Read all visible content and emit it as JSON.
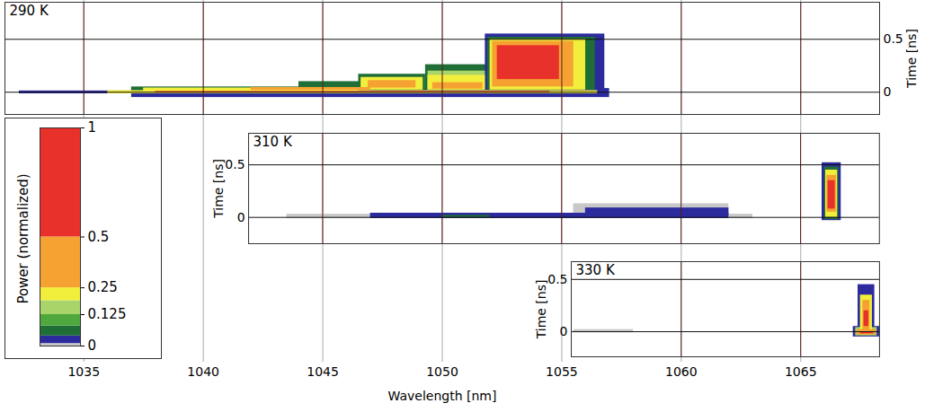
{
  "chart_data": {
    "type": "heatmap",
    "xlabel": "Wavelength [nm]",
    "xlim": [
      1031.7,
      1068.3
    ],
    "xticks": [
      1035,
      1040,
      1045,
      1050,
      1055,
      1060,
      1065
    ],
    "grid": true,
    "color_bar": {
      "label": "Power (normalized)",
      "range": [
        0,
        1
      ],
      "ticks": [
        0,
        0.125,
        0.25,
        0.5,
        1
      ],
      "bins": [
        0,
        0.01,
        0.04,
        0.08,
        0.125,
        0.19,
        0.25,
        0.5,
        1
      ],
      "colors": [
        "#c8c8c8",
        "#2b2b9e",
        "#1f6e35",
        "#4ea83c",
        "#a8d46a",
        "#f2ee3c",
        "#f6a232",
        "#e8312b"
      ]
    },
    "panels": [
      {
        "title": "290 K",
        "ylabel": "Time [ns]",
        "xlim": [
          1031.7,
          1068.3
        ],
        "ylim": [
          -0.21,
          0.85
        ],
        "yticks": [
          0,
          0.5
        ],
        "cells": [
          {
            "x1": 1032.3,
            "x2": 1037.5,
            "y1": -0.015,
            "y2": 0.012,
            "value": 0.02
          },
          {
            "x1": 1037,
            "x2": 1057,
            "y1": -0.05,
            "y2": 0.035,
            "value": 0.02
          },
          {
            "x1": 1037,
            "x2": 1045,
            "y1": 0,
            "y2": 0.05,
            "value": 0.06
          },
          {
            "x1": 1044,
            "x2": 1047,
            "y1": 0.02,
            "y2": 0.1,
            "value": 0.06
          },
          {
            "x1": 1046.5,
            "x2": 1049.3,
            "y1": 0.02,
            "y2": 0.17,
            "value": 0.06
          },
          {
            "x1": 1049.3,
            "x2": 1051.9,
            "y1": 0.02,
            "y2": 0.26,
            "value": 0.06
          },
          {
            "x1": 1051.8,
            "x2": 1056.8,
            "y1": 0.02,
            "y2": 0.55,
            "value": 0.02
          },
          {
            "x1": 1051.9,
            "x2": 1056.4,
            "y1": 0.02,
            "y2": 0.52,
            "value": 0.06
          },
          {
            "x1": 1037.5,
            "x2": 1046.5,
            "y1": 0,
            "y2": 0.04,
            "value": 0.2
          },
          {
            "x1": 1046.6,
            "x2": 1049.2,
            "y1": 0.02,
            "y2": 0.14,
            "value": 0.2
          },
          {
            "x1": 1049.4,
            "x2": 1051.8,
            "y1": 0.02,
            "y2": 0.2,
            "value": 0.15
          },
          {
            "x1": 1049.4,
            "x2": 1051.8,
            "y1": 0.02,
            "y2": 0.16,
            "value": 0.2
          },
          {
            "x1": 1052,
            "x2": 1056,
            "y1": 0.02,
            "y2": 0.5,
            "value": 0.2
          },
          {
            "x1": 1046.9,
            "x2": 1048.9,
            "y1": 0.04,
            "y2": 0.11,
            "value": 0.35
          },
          {
            "x1": 1049.6,
            "x2": 1051.7,
            "y1": 0.03,
            "y2": 0.09,
            "value": 0.35
          },
          {
            "x1": 1042,
            "x2": 1047,
            "y1": 0.015,
            "y2": 0.045,
            "value": 0.35
          },
          {
            "x1": 1052.1,
            "x2": 1055.5,
            "y1": 0.05,
            "y2": 0.48,
            "value": 0.35
          },
          {
            "x1": 1052.3,
            "x2": 1054.9,
            "y1": 0.12,
            "y2": 0.44,
            "value": 0.75
          },
          {
            "x1": 1036,
            "x2": 1056.5,
            "y1": -0.015,
            "y2": 0.015,
            "value": 0.2
          },
          {
            "x1": 1038,
            "x2": 1054.5,
            "y1": -0.007,
            "y2": 0.007,
            "value": 0.75
          }
        ]
      },
      {
        "title": "310 K",
        "ylabel": "Time [ns]",
        "xlim": [
          1041.9,
          1068.3
        ],
        "ylim": [
          -0.25,
          0.8
        ],
        "yticks": [
          0,
          0.5
        ],
        "cells": [
          {
            "x1": 1043.5,
            "x2": 1063,
            "y1": -0.01,
            "y2": 0.03,
            "value": 0.005
          },
          {
            "x1": 1055.5,
            "x2": 1062,
            "y1": 0,
            "y2": 0.13,
            "value": 0.005
          },
          {
            "x1": 1047,
            "x2": 1062,
            "y1": -0.01,
            "y2": 0.04,
            "value": 0.02
          },
          {
            "x1": 1056,
            "x2": 1062,
            "y1": 0.02,
            "y2": 0.09,
            "value": 0.02
          },
          {
            "x1": 1050,
            "x2": 1052,
            "y1": 0,
            "y2": 0.02,
            "value": 0.06
          },
          {
            "x1": 1065.9,
            "x2": 1066.7,
            "y1": -0.03,
            "y2": 0.52,
            "value": 0.02
          },
          {
            "x1": 1066,
            "x2": 1066.6,
            "y1": -0.02,
            "y2": 0.48,
            "value": 0.06
          },
          {
            "x1": 1066.05,
            "x2": 1066.55,
            "y1": 0,
            "y2": 0.45,
            "value": 0.2
          },
          {
            "x1": 1066.1,
            "x2": 1066.5,
            "y1": 0.05,
            "y2": 0.4,
            "value": 0.35
          },
          {
            "x1": 1066.15,
            "x2": 1066.45,
            "y1": 0.08,
            "y2": 0.35,
            "value": 0.75
          }
        ]
      },
      {
        "title": "330 K",
        "ylabel": "Time [ns]",
        "xlim": [
          1055.4,
          1068.3
        ],
        "ylim": [
          -0.24,
          0.67
        ],
        "yticks": [
          0,
          0.5
        ],
        "cells": [
          {
            "x1": 1055.5,
            "x2": 1058,
            "y1": -0.01,
            "y2": 0.02,
            "value": 0.005
          },
          {
            "x1": 1067.2,
            "x2": 1068.3,
            "y1": -0.05,
            "y2": 0.05,
            "value": 0.02
          },
          {
            "x1": 1067.4,
            "x2": 1068.1,
            "y1": -0.04,
            "y2": 0.45,
            "value": 0.02
          },
          {
            "x1": 1067.3,
            "x2": 1068.2,
            "y1": -0.04,
            "y2": 0.04,
            "value": 0.15
          },
          {
            "x1": 1067.5,
            "x2": 1068,
            "y1": -0.03,
            "y2": 0.35,
            "value": 0.2
          },
          {
            "x1": 1067.35,
            "x2": 1068.15,
            "y1": -0.03,
            "y2": 0.02,
            "value": 0.35
          },
          {
            "x1": 1067.6,
            "x2": 1067.9,
            "y1": 0,
            "y2": 0.3,
            "value": 0.35
          },
          {
            "x1": 1067.5,
            "x2": 1068.05,
            "y1": -0.02,
            "y2": 0,
            "value": 0.75
          },
          {
            "x1": 1067.65,
            "x2": 1067.85,
            "y1": 0.05,
            "y2": 0.2,
            "value": 0.75
          }
        ]
      }
    ]
  }
}
